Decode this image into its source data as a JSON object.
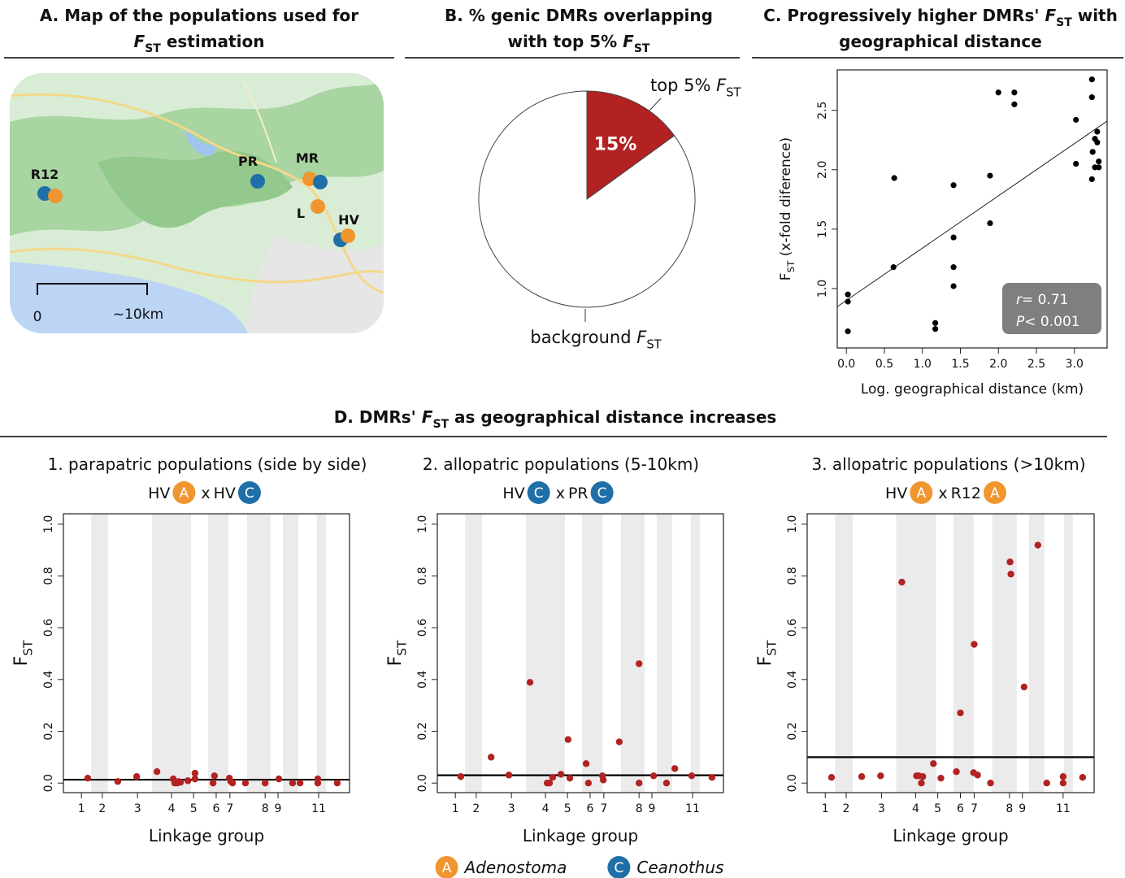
{
  "map": {
    "title": [
      [
        "A. Map of the populations used for"
      ],
      [
        {
          "italic": "F",
          "sub": "ST"
        },
        " estimation"
      ]
    ],
    "sites": [
      "R12",
      "PR",
      "MR",
      "L",
      "HV"
    ],
    "scale_labels": [
      "0",
      "~10km"
    ]
  },
  "section_title": [
    "D. DMRs' ",
    {
      "italic": "F",
      "sub": "ST"
    },
    " as geographical distance increases"
  ],
  "legend": [
    {
      "badge": "A",
      "name": "Adenostoma",
      "color": "#f0962f"
    },
    {
      "badge": "C",
      "name": "Ceanothus",
      "color": "#1f6fa8"
    }
  ],
  "chart_data": [
    {
      "type": "pie",
      "title": [
        [
          "B. % genic DMRs overlapping"
        ],
        [
          "with top 5% ",
          {
            "italic": "F",
            "sub": "ST"
          }
        ]
      ],
      "categories": [
        [
          "top 5% ",
          {
            "italic": "F",
            "sub": "ST"
          }
        ],
        [
          "background ",
          {
            "italic": "F",
            "sub": "ST"
          }
        ]
      ],
      "values": [
        15,
        85
      ],
      "value_labels": [
        "15%",
        null
      ],
      "colors": [
        "#b22222",
        "#ffffff"
      ]
    },
    {
      "type": "scatter",
      "title": [
        [
          "C. Progressively higher DMRs' ",
          {
            "italic": "F",
            "sub": "ST"
          },
          " with"
        ],
        [
          "geographical distance"
        ]
      ],
      "x": [
        0.02,
        0.02,
        0.02,
        0.63,
        0.62,
        1.17,
        1.17,
        1.41,
        1.41,
        1.41,
        1.41,
        1.89,
        1.89,
        2.0,
        2.21,
        2.21,
        3.02,
        3.02,
        3.23,
        3.23,
        3.3,
        3.27,
        3.3,
        3.24,
        3.32,
        3.27,
        3.32,
        3.23
      ],
      "values": [
        0.95,
        0.89,
        0.64,
        1.93,
        1.18,
        0.71,
        0.66,
        1.87,
        1.43,
        1.18,
        1.02,
        1.95,
        1.55,
        2.65,
        2.65,
        2.55,
        2.42,
        2.05,
        2.76,
        2.61,
        2.32,
        2.26,
        2.23,
        2.15,
        2.07,
        2.02,
        2.02,
        1.92
      ],
      "color": "#000000",
      "xlim": [
        -0.12,
        3.43
      ],
      "ylim": [
        0.5,
        2.84
      ],
      "xticks": [
        {
          "value": 0,
          "label": "0.0"
        },
        0.5,
        {
          "value": 1,
          "label": "1.0"
        },
        1.5,
        {
          "value": 2,
          "label": "2.0"
        },
        2.5,
        {
          "value": 3,
          "label": "3.0"
        }
      ],
      "yticks": [
        {
          "value": 1,
          "label": "1.0"
        },
        1.5,
        {
          "value": 2,
          "label": "2.0"
        },
        2.5
      ],
      "xlabel": "Log. geographical distance (km)",
      "ylabel": [
        {
          "text": "F",
          "sub": "ST"
        },
        " (x-fold diference)"
      ],
      "fit": {
        "intercept": 0.9,
        "slope": 0.44
      },
      "annotation": [
        {
          "italic": "r",
          "text": "= 0.71"
        },
        {
          "italic": "P",
          "text": "< 0.001"
        }
      ]
    },
    {
      "type": "scatter",
      "title": "1. parapatric populations (side by side)",
      "pair": [
        {
          "site": "HV",
          "badge": "A"
        },
        {
          "site": "HV",
          "badge": "C"
        }
      ],
      "pair_sep": "x",
      "x": [
        8.5,
        19.0,
        25.6,
        32.7,
        38.4,
        38.9,
        39.8,
        40.3,
        40.9,
        43.5,
        46.0,
        46.0,
        52.3,
        52.8,
        58.0,
        58.5,
        59.1,
        63.6,
        70.5,
        75.3,
        80.1,
        82.7,
        88.9,
        88.9,
        95.7
      ],
      "values": [
        0.019,
        0.006,
        0.025,
        0.044,
        0.016,
        0.0,
        0.0,
        0.006,
        0.003,
        0.009,
        0.038,
        0.016,
        0.0,
        0.028,
        0.019,
        0.006,
        0.0,
        0.0,
        0.0,
        0.016,
        0.0,
        0.0,
        0.016,
        0.0,
        0.0
      ],
      "color": "#b22222",
      "threshold": 0.013,
      "bands": [
        [
          9.7,
          15.6
        ],
        [
          31.0,
          44.6
        ],
        [
          50.6,
          57.7
        ],
        [
          64.2,
          72.4
        ],
        [
          76.7,
          82.1
        ],
        [
          88.6,
          91.8
        ]
      ],
      "xlim": [
        0,
        100
      ],
      "ylim": [
        -0.037,
        1.04
      ],
      "xticks": [
        {
          "value": 6.3,
          "label": "1"
        },
        {
          "value": 13.6,
          "label": "2"
        },
        {
          "value": 25.9,
          "label": "3"
        },
        {
          "value": 37.8,
          "label": "4"
        },
        {
          "value": 45.5,
          "label": "5"
        },
        {
          "value": 53.4,
          "label": "6"
        },
        {
          "value": 58.2,
          "label": "7"
        },
        {
          "value": 70.5,
          "label": "8"
        },
        {
          "value": 75.0,
          "label": "9"
        },
        {
          "value": 89.2,
          "label": "11"
        }
      ],
      "yticks": [
        {
          "value": 0,
          "label": "0.0"
        },
        0.2,
        0.4,
        0.6,
        0.8,
        {
          "value": 1,
          "label": "1.0"
        }
      ],
      "xlabel": "Linkage group",
      "ylabel": [
        {
          "text": "F",
          "sub": "ST"
        }
      ]
    },
    {
      "type": "scatter",
      "title": "2. allopatric populations (5-10km)",
      "pair": [
        {
          "site": "HV",
          "badge": "C"
        },
        {
          "site": "PR",
          "badge": "C"
        }
      ],
      "pair_sep": "x",
      "x": [
        8.2,
        18.8,
        25.0,
        32.4,
        38.4,
        39.2,
        40.3,
        43.2,
        45.7,
        46.3,
        52.0,
        52.8,
        57.7,
        58.0,
        63.6,
        70.5,
        70.5,
        75.6,
        80.1,
        83.0,
        88.9,
        96.0
      ],
      "values": [
        0.025,
        0.1,
        0.031,
        0.389,
        0.0,
        0.0,
        0.022,
        0.034,
        0.168,
        0.019,
        0.075,
        0.0,
        0.028,
        0.012,
        0.159,
        0.461,
        0.0,
        0.028,
        0.0,
        0.056,
        0.028,
        0.022
      ],
      "color": "#b22222",
      "threshold": 0.03,
      "bands": [
        [
          9.7,
          15.6
        ],
        [
          31.0,
          44.6
        ],
        [
          50.6,
          57.7
        ],
        [
          64.2,
          72.4
        ],
        [
          76.7,
          82.1
        ],
        [
          88.6,
          91.8
        ]
      ],
      "xlim": [
        0,
        100
      ],
      "ylim": [
        -0.037,
        1.04
      ],
      "xticks": [
        {
          "value": 6.3,
          "label": "1"
        },
        {
          "value": 13.6,
          "label": "2"
        },
        {
          "value": 25.9,
          "label": "3"
        },
        {
          "value": 37.8,
          "label": "4"
        },
        {
          "value": 45.5,
          "label": "5"
        },
        {
          "value": 53.4,
          "label": "6"
        },
        {
          "value": 58.2,
          "label": "7"
        },
        {
          "value": 70.5,
          "label": "8"
        },
        {
          "value": 75.0,
          "label": "9"
        },
        {
          "value": 89.2,
          "label": "11"
        }
      ],
      "yticks": [
        {
          "value": 0,
          "label": "0.0"
        },
        0.2,
        0.4,
        0.6,
        0.8,
        {
          "value": 1,
          "label": "1.0"
        }
      ],
      "xlabel": "Linkage group",
      "ylabel": [
        {
          "text": "F",
          "sub": "ST"
        }
      ]
    },
    {
      "type": "scatter",
      "title": "3. allopatric populations (>10km)",
      "pair": [
        {
          "site": "HV",
          "badge": "A"
        },
        {
          "site": "R12",
          "badge": "A"
        }
      ],
      "pair_sep": "x",
      "x": [
        8.5,
        19.0,
        25.6,
        33.0,
        38.1,
        38.9,
        39.8,
        40.3,
        44.0,
        46.6,
        52.0,
        53.4,
        58.0,
        58.2,
        59.4,
        63.9,
        70.7,
        71.0,
        75.6,
        80.4,
        83.5,
        89.2,
        89.2,
        96.0
      ],
      "values": [
        0.022,
        0.025,
        0.028,
        0.776,
        0.028,
        0.028,
        0.0,
        0.025,
        0.075,
        0.019,
        0.044,
        0.271,
        0.04,
        0.536,
        0.031,
        0.0,
        0.854,
        0.807,
        0.371,
        0.919,
        0.0,
        0.025,
        0.0,
        0.022
      ],
      "color": "#b22222",
      "threshold": 0.1,
      "bands": [
        [
          9.7,
          15.9
        ],
        [
          31.0,
          44.9
        ],
        [
          50.9,
          58.0
        ],
        [
          64.5,
          73.0
        ],
        [
          77.3,
          82.7
        ],
        [
          89.5,
          92.6
        ]
      ],
      "xlim": [
        0,
        100
      ],
      "ylim": [
        -0.037,
        1.04
      ],
      "xticks": [
        {
          "value": 6.3,
          "label": "1"
        },
        {
          "value": 13.6,
          "label": "2"
        },
        {
          "value": 25.9,
          "label": "3"
        },
        {
          "value": 37.8,
          "label": "4"
        },
        {
          "value": 45.5,
          "label": "5"
        },
        {
          "value": 53.4,
          "label": "6"
        },
        {
          "value": 58.2,
          "label": "7"
        },
        {
          "value": 70.5,
          "label": "8"
        },
        {
          "value": 75.0,
          "label": "9"
        },
        {
          "value": 89.2,
          "label": "11"
        }
      ],
      "yticks": [
        {
          "value": 0,
          "label": "0.0"
        },
        0.2,
        0.4,
        0.6,
        0.8,
        {
          "value": 1,
          "label": "1.0"
        }
      ],
      "xlabel": "Linkage group",
      "ylabel": [
        {
          "text": "F",
          "sub": "ST"
        }
      ]
    }
  ]
}
